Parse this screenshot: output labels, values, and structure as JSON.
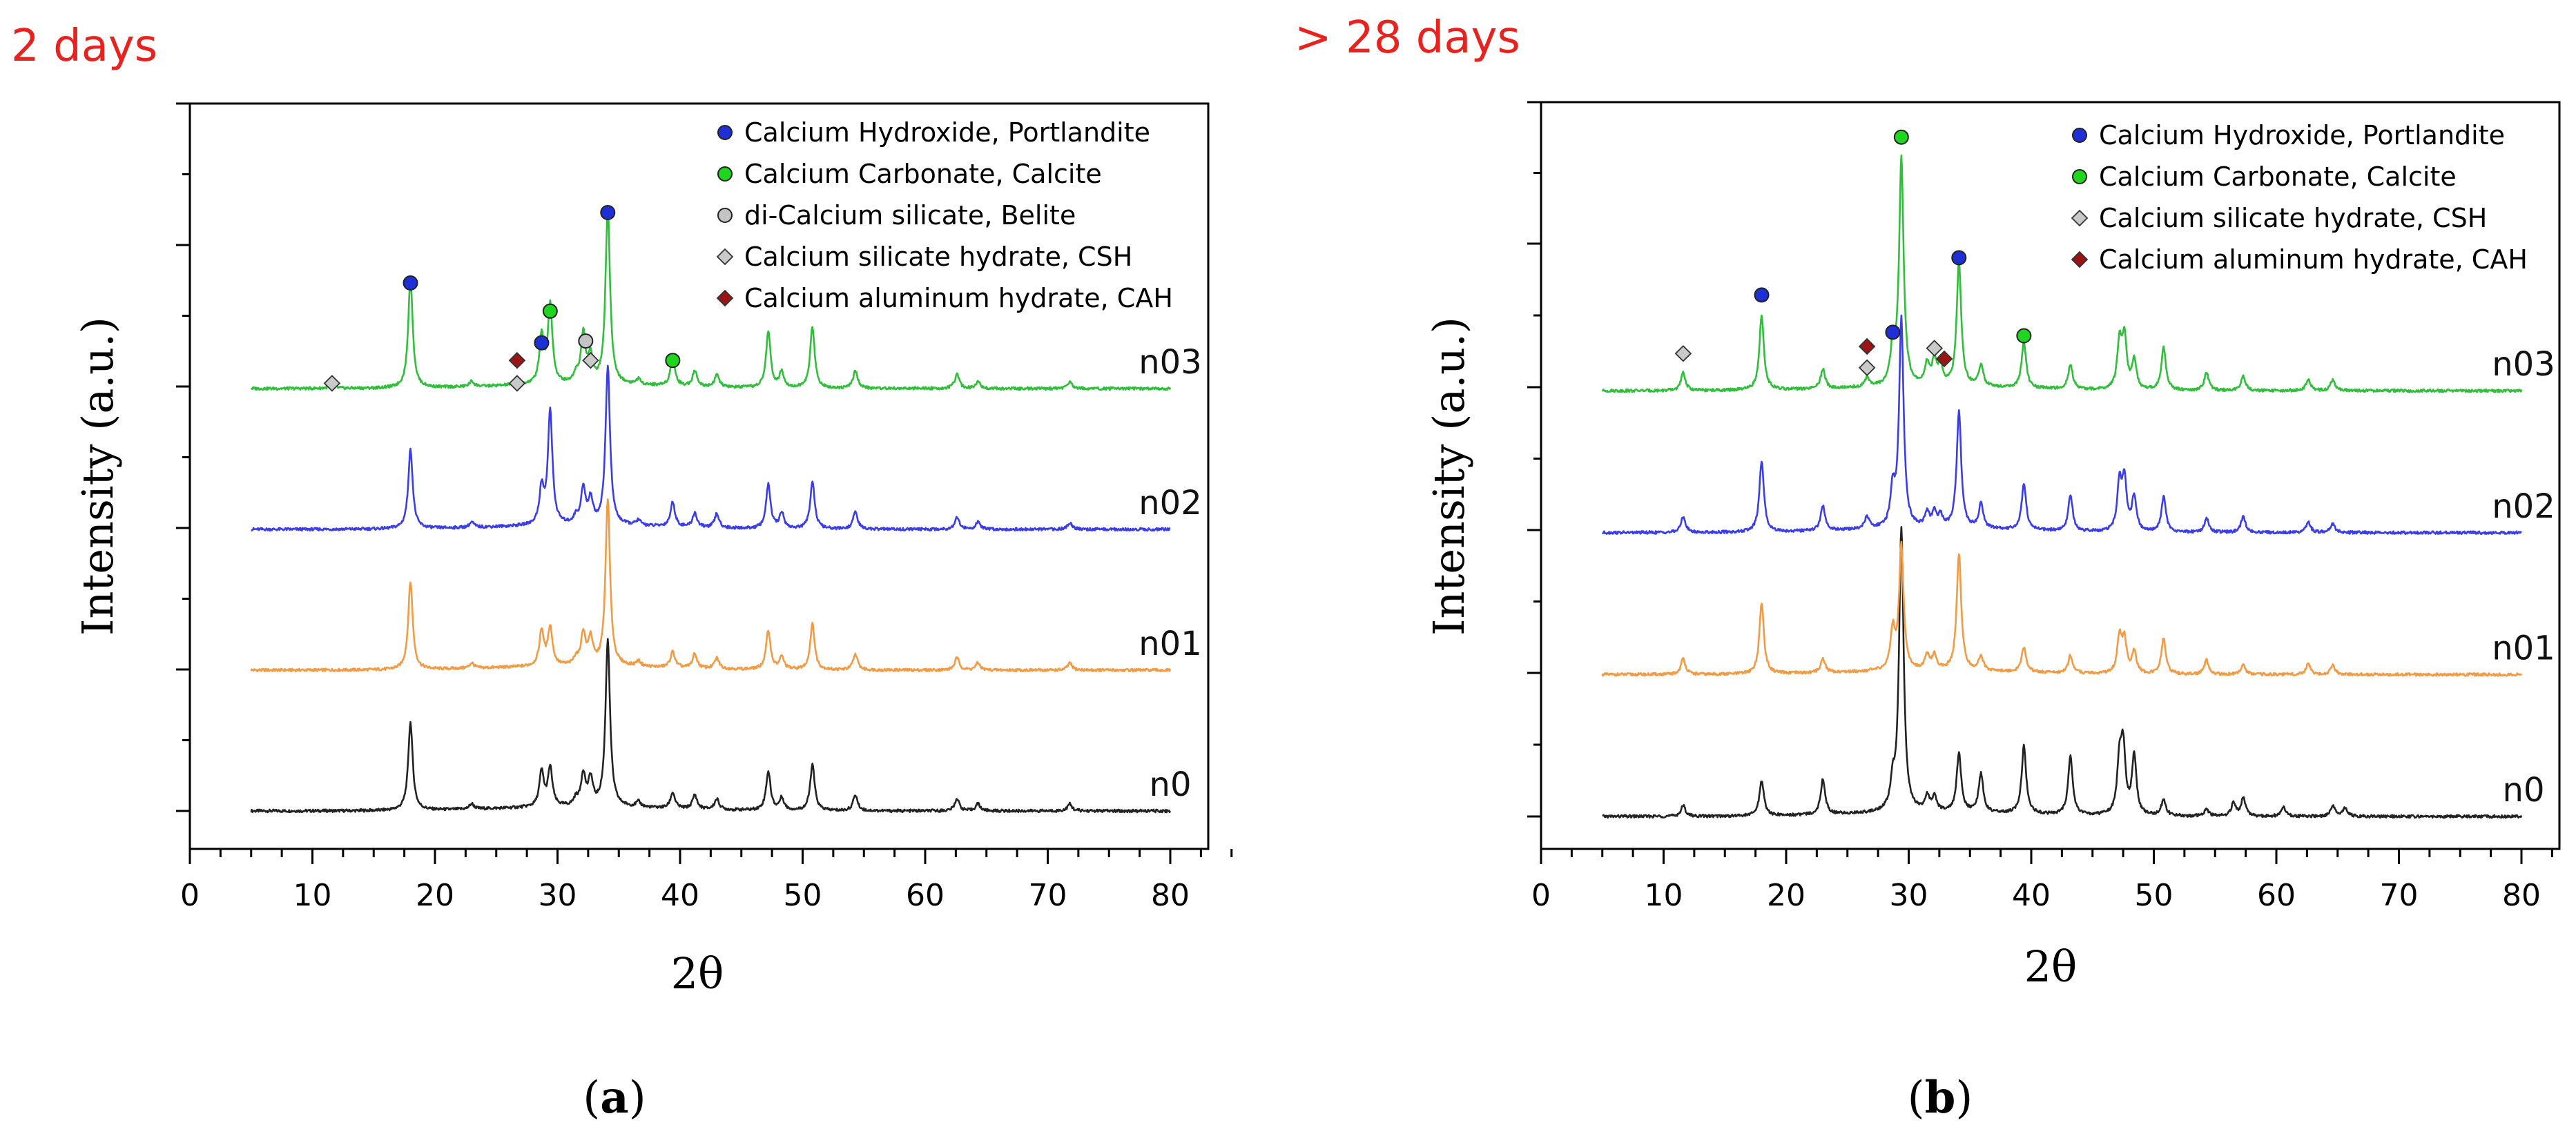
{
  "chart_data": [
    {
      "id": "a",
      "type": "line",
      "panel_title": "2 days",
      "caption_letter": "a",
      "xlabel": "2θ",
      "ylabel": "Intensity (a.u.)",
      "xlim": [
        0,
        85
      ],
      "xticks": [
        0,
        10,
        20,
        30,
        40,
        50,
        60,
        70,
        80
      ],
      "series": [
        {
          "name": "n0",
          "color": "#222222",
          "offset": 0,
          "scale": 1.0,
          "peaks": [
            [
              18.0,
              50
            ],
            [
              23.0,
              3
            ],
            [
              28.7,
              20
            ],
            [
              29.4,
              22
            ],
            [
              31.5,
              4
            ],
            [
              32.1,
              18
            ],
            [
              32.7,
              15
            ],
            [
              34.1,
              95
            ],
            [
              36.6,
              3
            ],
            [
              39.4,
              9
            ],
            [
              41.2,
              8
            ],
            [
              43.0,
              6
            ],
            [
              47.2,
              22
            ],
            [
              48.3,
              7
            ],
            [
              50.8,
              26
            ],
            [
              54.3,
              9
            ],
            [
              62.6,
              7
            ],
            [
              64.3,
              4
            ],
            [
              71.8,
              4
            ]
          ]
        },
        {
          "name": "n01",
          "color": "#f29b45",
          "offset": 80,
          "scale": 1.0,
          "peaks": [
            [
              18.0,
              50
            ],
            [
              23.0,
              3
            ],
            [
              28.7,
              20
            ],
            [
              29.4,
              22
            ],
            [
              31.5,
              4
            ],
            [
              32.1,
              18
            ],
            [
              32.7,
              15
            ],
            [
              34.1,
              95
            ],
            [
              36.6,
              3
            ],
            [
              39.4,
              9
            ],
            [
              41.2,
              8
            ],
            [
              43.0,
              6
            ],
            [
              47.2,
              22
            ],
            [
              48.3,
              7
            ],
            [
              50.8,
              26
            ],
            [
              54.3,
              9
            ],
            [
              62.6,
              7
            ],
            [
              64.3,
              4
            ],
            [
              71.8,
              4
            ]
          ]
        },
        {
          "name": "n02",
          "color": "#3b3ee8",
          "offset": 160,
          "scale": 1.0,
          "peaks": [
            [
              18.0,
              45
            ],
            [
              23.0,
              3
            ],
            [
              28.7,
              20
            ],
            [
              29.4,
              65
            ],
            [
              31.5,
              4
            ],
            [
              32.1,
              20
            ],
            [
              32.7,
              14
            ],
            [
              34.1,
              90
            ],
            [
              36.6,
              3
            ],
            [
              39.4,
              14
            ],
            [
              41.2,
              8
            ],
            [
              43.0,
              8
            ],
            [
              47.2,
              25
            ],
            [
              48.3,
              9
            ],
            [
              50.8,
              27
            ],
            [
              54.3,
              10
            ],
            [
              62.6,
              7
            ],
            [
              64.3,
              4
            ],
            [
              71.8,
              4
            ]
          ]
        },
        {
          "name": "n03",
          "color": "#2fbf3a",
          "offset": 240,
          "scale": 1.0,
          "peaks": [
            [
              11.6,
              3
            ],
            [
              18.0,
              62
            ],
            [
              23.0,
              3
            ],
            [
              26.7,
              3
            ],
            [
              28.7,
              27
            ],
            [
              29.4,
              45
            ],
            [
              31.5,
              5
            ],
            [
              32.1,
              28
            ],
            [
              32.7,
              15
            ],
            [
              34.1,
              100
            ],
            [
              36.6,
              3
            ],
            [
              39.4,
              16
            ],
            [
              41.2,
              9
            ],
            [
              43.0,
              7
            ],
            [
              47.2,
              32
            ],
            [
              48.3,
              9
            ],
            [
              50.8,
              35
            ],
            [
              54.3,
              10
            ],
            [
              62.6,
              8
            ],
            [
              64.3,
              4
            ],
            [
              71.8,
              4
            ]
          ]
        }
      ],
      "markers": [
        {
          "shape": "circle",
          "color": "#1f2fd6",
          "x": 18.0,
          "y": 300
        },
        {
          "shape": "circle",
          "color": "#1f2fd6",
          "x": 28.7,
          "y": 266
        },
        {
          "shape": "circle",
          "color": "#1fd61f",
          "x": 29.4,
          "y": 284
        },
        {
          "shape": "circle",
          "color": "#1f2fd6",
          "x": 34.1,
          "y": 340
        },
        {
          "shape": "circle",
          "color": "#c4c4c4",
          "x": 32.3,
          "y": 267
        },
        {
          "shape": "circle",
          "color": "#1fd61f",
          "x": 39.4,
          "y": 256
        },
        {
          "shape": "diamond",
          "color": "#c9c9c9",
          "x": 11.6,
          "y": 243
        },
        {
          "shape": "diamond",
          "color": "#c9c9c9",
          "x": 26.7,
          "y": 243
        },
        {
          "shape": "diamond",
          "color": "#c9c9c9",
          "x": 32.7,
          "y": 256
        },
        {
          "shape": "diamond",
          "color": "#9a1414",
          "x": 26.7,
          "y": 256
        }
      ],
      "legend": [
        {
          "label": "Calcium Hydroxide, Portlandite",
          "shape": "circle",
          "color": "#1f2fd6"
        },
        {
          "label": "Calcium Carbonate, Calcite",
          "shape": "circle",
          "color": "#1fd61f"
        },
        {
          "label": "di-Calcium silicate, Belite",
          "shape": "circle",
          "color": "#c4c4c4"
        },
        {
          "label": "Calcium silicate hydrate, CSH",
          "shape": "diamond",
          "color": "#c9c9c9"
        },
        {
          "label": "Calcium aluminum hydrate, CAH",
          "shape": "diamond",
          "color": "#9a1414"
        }
      ]
    },
    {
      "id": "b",
      "type": "line",
      "panel_title": "> 28 days",
      "caption_letter": "b",
      "xlabel": "2θ",
      "ylabel": "Intensity (a.u.)",
      "xlim": [
        0,
        85
      ],
      "xticks": [
        0,
        10,
        20,
        30,
        40,
        50,
        60,
        70,
        80
      ],
      "series": [
        {
          "name": "n0",
          "color": "#222222",
          "offset": 0,
          "scale": 1.0,
          "peaks": [
            [
              11.6,
              6
            ],
            [
              18.0,
              20
            ],
            [
              23.0,
              20
            ],
            [
              28.7,
              14
            ],
            [
              29.4,
              160
            ],
            [
              31.5,
              8
            ],
            [
              32.1,
              8
            ],
            [
              34.1,
              33
            ],
            [
              35.9,
              22
            ],
            [
              39.4,
              38
            ],
            [
              43.2,
              33
            ],
            [
              47.2,
              28
            ],
            [
              47.5,
              36
            ],
            [
              48.4,
              33
            ],
            [
              50.8,
              9
            ],
            [
              54.3,
              4
            ],
            [
              56.5,
              7
            ],
            [
              57.3,
              10
            ],
            [
              60.6,
              5
            ],
            [
              64.6,
              6
            ],
            [
              65.6,
              5
            ]
          ]
        },
        {
          "name": "n01",
          "color": "#f29b45",
          "offset": 80,
          "scale": 1.0,
          "peaks": [
            [
              11.6,
              9
            ],
            [
              18.0,
              40
            ],
            [
              23.0,
              8
            ],
            [
              28.7,
              22
            ],
            [
              29.4,
              70
            ],
            [
              31.5,
              8
            ],
            [
              32.1,
              8
            ],
            [
              34.1,
              66
            ],
            [
              35.9,
              8
            ],
            [
              39.4,
              14
            ],
            [
              43.2,
              10
            ],
            [
              47.2,
              20
            ],
            [
              47.6,
              18
            ],
            [
              48.4,
              12
            ],
            [
              50.8,
              20
            ],
            [
              54.3,
              8
            ],
            [
              57.3,
              5
            ],
            [
              62.6,
              6
            ],
            [
              64.6,
              5
            ]
          ]
        },
        {
          "name": "n02",
          "color": "#3b3ee8",
          "offset": 160,
          "scale": 1.0,
          "peaks": [
            [
              11.6,
              9
            ],
            [
              18.0,
              40
            ],
            [
              23.0,
              14
            ],
            [
              26.6,
              7
            ],
            [
              28.7,
              20
            ],
            [
              29.4,
              118
            ],
            [
              31.5,
              8
            ],
            [
              32.1,
              8
            ],
            [
              32.6,
              6
            ],
            [
              34.1,
              66
            ],
            [
              35.9,
              14
            ],
            [
              39.4,
              26
            ],
            [
              43.2,
              20
            ],
            [
              47.2,
              26
            ],
            [
              47.6,
              28
            ],
            [
              48.4,
              19
            ],
            [
              50.8,
              20
            ],
            [
              54.3,
              8
            ],
            [
              57.3,
              9
            ],
            [
              62.6,
              6
            ],
            [
              64.6,
              5
            ]
          ]
        },
        {
          "name": "n03",
          "color": "#2fbf3a",
          "offset": 240,
          "scale": 1.0,
          "peaks": [
            [
              11.6,
              10
            ],
            [
              18.0,
              42
            ],
            [
              23.0,
              11
            ],
            [
              26.6,
              5
            ],
            [
              28.7,
              20
            ],
            [
              29.4,
              128
            ],
            [
              31.5,
              12
            ],
            [
              32.1,
              14
            ],
            [
              32.6,
              10
            ],
            [
              34.1,
              70
            ],
            [
              35.9,
              12
            ],
            [
              39.4,
              26
            ],
            [
              43.2,
              14
            ],
            [
              47.2,
              26
            ],
            [
              47.6,
              28
            ],
            [
              48.4,
              16
            ],
            [
              50.8,
              24
            ],
            [
              54.3,
              10
            ],
            [
              57.3,
              8
            ],
            [
              62.6,
              6
            ],
            [
              64.6,
              6
            ]
          ]
        }
      ],
      "markers": [
        {
          "shape": "circle",
          "color": "#1f2fd6",
          "x": 18.0,
          "y": 294
        },
        {
          "shape": "circle",
          "color": "#1f2fd6",
          "x": 28.7,
          "y": 273
        },
        {
          "shape": "circle",
          "color": "#1fd61f",
          "x": 29.4,
          "y": 383
        },
        {
          "shape": "circle",
          "color": "#1f2fd6",
          "x": 34.1,
          "y": 315
        },
        {
          "shape": "circle",
          "color": "#1fd61f",
          "x": 39.4,
          "y": 271
        },
        {
          "shape": "diamond",
          "color": "#c9c9c9",
          "x": 11.6,
          "y": 261
        },
        {
          "shape": "diamond",
          "color": "#c9c9c9",
          "x": 26.6,
          "y": 253
        },
        {
          "shape": "diamond",
          "color": "#c9c9c9",
          "x": 32.1,
          "y": 264
        },
        {
          "shape": "diamond",
          "color": "#9a1414",
          "x": 26.6,
          "y": 265
        },
        {
          "shape": "diamond",
          "color": "#9a1414",
          "x": 32.9,
          "y": 258
        }
      ],
      "legend": [
        {
          "label": "Calcium Hydroxide, Portlandite",
          "shape": "circle",
          "color": "#1f2fd6"
        },
        {
          "label": "Calcium Carbonate, Calcite",
          "shape": "circle",
          "color": "#1fd61f"
        },
        {
          "label": "Calcium silicate hydrate, CSH",
          "shape": "diamond",
          "color": "#c9c9c9"
        },
        {
          "label": "Calcium aluminum hydrate, CAH",
          "shape": "diamond",
          "color": "#9a1414"
        }
      ]
    }
  ]
}
